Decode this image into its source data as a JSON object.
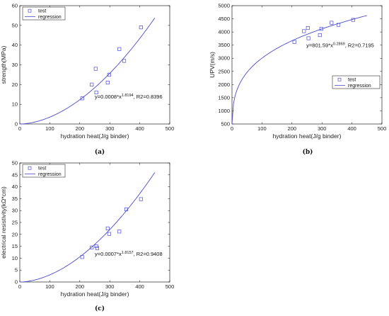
{
  "colors": {
    "series": "#4b4bd1",
    "axis": "#222222",
    "frame": "#000000"
  },
  "chart_data": [
    {
      "type": "scatter",
      "panel_label": "(a)",
      "xlabel": "hydration heat(J/g binder)",
      "ylabel": "strength(MPa)",
      "xlim": [
        0,
        500
      ],
      "ylim": [
        0,
        60
      ],
      "xticks": [
        0,
        100,
        200,
        300,
        400,
        500
      ],
      "yticks": [
        0,
        10,
        20,
        30,
        40,
        50,
        60
      ],
      "grid": false,
      "legend_position": "top-left",
      "series": [
        {
          "name": "test",
          "marker": "square",
          "x": [
            208,
            240,
            253,
            255,
            293,
            298,
            332,
            348,
            404
          ],
          "y": [
            13,
            20,
            28,
            16,
            21,
            25,
            38,
            32,
            49
          ]
        },
        {
          "name": "regression",
          "curve": {
            "a": 0.0008,
            "b": 1.8194,
            "x_range": [
              0,
              450
            ]
          }
        }
      ],
      "annotation": {
        "text": "y=0.0008*x",
        "exp": "1.8194",
        "tail": ", R2=0.8396",
        "x": 250,
        "y": 13
      }
    },
    {
      "type": "scatter",
      "panel_label": "(b)",
      "xlabel": "hydration heat(J/g binder)",
      "ylabel": "UPV(m/s)",
      "xlim": [
        0,
        500
      ],
      "ylim": [
        500,
        5000
      ],
      "xticks": [
        0,
        100,
        200,
        300,
        400,
        500
      ],
      "yticks": [
        500,
        1000,
        1500,
        2000,
        2500,
        3000,
        3500,
        4000,
        4500,
        5000
      ],
      "grid": false,
      "legend_position": "lower-right",
      "series": [
        {
          "name": "test",
          "marker": "square",
          "x": [
            208,
            240,
            253,
            255,
            293,
            298,
            332,
            355,
            404
          ],
          "y": [
            3620,
            4030,
            4150,
            3760,
            3880,
            4120,
            4350,
            4270,
            4460
          ]
        },
        {
          "name": "regression",
          "curve": {
            "a": 801.59,
            "b": 0.2869,
            "x_range": [
              0,
              450
            ]
          }
        }
      ],
      "annotation": {
        "text": "y=801.59*x",
        "exp": "0.2869",
        "tail": ", R2=0.7195",
        "x": 248,
        "y": 3420
      }
    },
    {
      "type": "scatter",
      "panel_label": "(c)",
      "xlabel": "hydration heat(J/g binder)",
      "ylabel": "electrical resistivity(kΩ*cm)",
      "xlim": [
        0,
        500
      ],
      "ylim": [
        0,
        50
      ],
      "xticks": [
        0,
        100,
        200,
        300,
        400,
        500
      ],
      "yticks": [
        0,
        5,
        10,
        15,
        20,
        25,
        30,
        35,
        40,
        45,
        50
      ],
      "grid": false,
      "legend_position": "top-left",
      "series": [
        {
          "name": "test",
          "marker": "square",
          "x": [
            208,
            240,
            255,
            258,
            293,
            298,
            332,
            355,
            404
          ],
          "y": [
            10.5,
            14.5,
            15.0,
            14.2,
            22.5,
            20.2,
            21.2,
            30.5,
            34.8
          ]
        },
        {
          "name": "regression",
          "curve": {
            "a": 0.0007,
            "b": 1.8157,
            "x_range": [
              0,
              450
            ]
          }
        }
      ],
      "annotation": {
        "text": "y=0.0007*x",
        "exp": "1.8157",
        "tail": ", R2=0.9408",
        "x": 250,
        "y": 11
      }
    }
  ]
}
